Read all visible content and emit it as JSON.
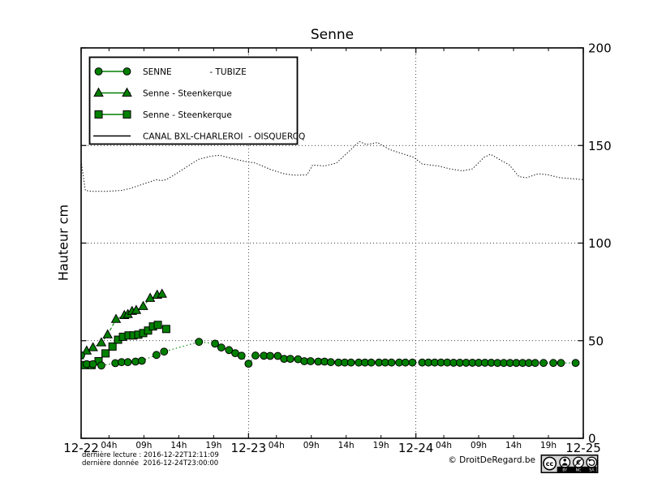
{
  "title": "Senne",
  "ylabel": "Hauteur cm",
  "footer": {
    "last_reading": "dernière lecture : 2016-12-22T12:11:09",
    "last_data": "dernière donnée  2016-12-24T23:00:00",
    "copyright": "© DroitDeRegard.be",
    "cc_badge": {
      "cc": "cc",
      "labels": [
        "BY",
        "NC",
        "SA"
      ]
    }
  },
  "chart_data": {
    "type": "line",
    "title": "Senne",
    "xlabel": "",
    "ylabel": "Hauteur cm",
    "ylim": [
      0,
      200
    ],
    "xlim_hours": [
      0,
      72
    ],
    "grid": {
      "h_values": [
        50,
        100,
        150
      ],
      "v_hours": [
        24,
        48
      ]
    },
    "y_ticks": [
      {
        "v": 0,
        "label": "0"
      },
      {
        "v": 50,
        "label": "50"
      },
      {
        "v": 100,
        "label": "100"
      },
      {
        "v": 150,
        "label": "150"
      },
      {
        "v": 200,
        "label": "200"
      }
    ],
    "x_major_ticks": [
      {
        "h": 0,
        "label": "12-22"
      },
      {
        "h": 24,
        "label": "12-23"
      },
      {
        "h": 48,
        "label": "12-24"
      },
      {
        "h": 72,
        "label": "12-25"
      }
    ],
    "x_minor_ticks": [
      {
        "h": 4,
        "label": "04h"
      },
      {
        "h": 9,
        "label": "09h"
      },
      {
        "h": 14,
        "label": "14h"
      },
      {
        "h": 19,
        "label": "19h"
      },
      {
        "h": 28,
        "label": "04h"
      },
      {
        "h": 33,
        "label": "09h"
      },
      {
        "h": 38,
        "label": "14h"
      },
      {
        "h": 43,
        "label": "19h"
      },
      {
        "h": 52,
        "label": "04h"
      },
      {
        "h": 57,
        "label": "09h"
      },
      {
        "h": 62,
        "label": "14h"
      },
      {
        "h": 67,
        "label": "19h"
      }
    ],
    "legend": [
      {
        "label": "SENNE              - TUBIZE",
        "marker": "circle",
        "color": "#008000"
      },
      {
        "label": "Senne - Steenkerque",
        "marker": "triangle",
        "color": "#008000"
      },
      {
        "label": "Senne - Steenkerque",
        "marker": "square",
        "color": "#008000"
      },
      {
        "label": "CANAL BXL-CHARLEROI  - OISQUERCQ",
        "marker": "none",
        "color": "#000000"
      }
    ],
    "series": [
      {
        "id": "canal-oisquercq",
        "name": "CANAL BXL-CHARLEROI - OISQUERCQ",
        "marker": "none",
        "color": "#000000",
        "line": "dense-dotted",
        "points": [
          [
            0,
            142
          ],
          [
            0.6,
            127
          ],
          [
            1.5,
            126.5
          ],
          [
            2.5,
            126.5
          ],
          [
            3.5,
            126.5
          ],
          [
            4.5,
            126.7
          ],
          [
            5.8,
            127
          ],
          [
            7,
            128
          ],
          [
            8.7,
            130
          ],
          [
            10,
            131.5
          ],
          [
            10.7,
            132.5
          ],
          [
            11.5,
            132
          ],
          [
            12.2,
            132.5
          ],
          [
            13.4,
            135
          ],
          [
            15.1,
            139
          ],
          [
            16.9,
            143
          ],
          [
            18.6,
            144.5
          ],
          [
            19.8,
            145
          ],
          [
            21.5,
            143.5
          ],
          [
            23.3,
            142
          ],
          [
            25,
            141
          ],
          [
            27.3,
            137.5
          ],
          [
            29.1,
            135.5
          ],
          [
            30.5,
            134.8
          ],
          [
            31.4,
            134.8
          ],
          [
            32.4,
            135
          ],
          [
            33.2,
            140
          ],
          [
            34.9,
            139.5
          ],
          [
            36.6,
            141
          ],
          [
            38.4,
            147
          ],
          [
            39.9,
            152
          ],
          [
            40.9,
            150.5
          ],
          [
            41.8,
            151
          ],
          [
            42.5,
            151.5
          ],
          [
            44.2,
            148
          ],
          [
            45.9,
            146
          ],
          [
            47.7,
            144
          ],
          [
            48.9,
            140.5
          ],
          [
            51.2,
            139.5
          ],
          [
            52.9,
            138
          ],
          [
            54.7,
            137
          ],
          [
            56.1,
            138
          ],
          [
            57.8,
            144
          ],
          [
            58.7,
            145.5
          ],
          [
            59.9,
            143
          ],
          [
            61.4,
            140
          ],
          [
            62.8,
            134
          ],
          [
            63.9,
            133.5
          ],
          [
            65.5,
            135.5
          ],
          [
            66.9,
            135
          ],
          [
            68.6,
            133.5
          ],
          [
            70.3,
            133
          ],
          [
            72,
            132.5
          ]
        ]
      },
      {
        "id": "steenkerque-squares",
        "name": "Senne - Steenkerque",
        "marker": "square",
        "color": "#008000",
        "line": "solid",
        "points": [
          [
            0.5,
            37.5
          ],
          [
            1.5,
            37.5
          ],
          [
            2.5,
            39.5
          ],
          [
            3.5,
            43.5
          ],
          [
            4.5,
            47
          ],
          [
            5.3,
            50.5
          ],
          [
            6,
            52
          ],
          [
            6.8,
            52.7
          ],
          [
            7.5,
            52.7
          ],
          [
            8.2,
            53.1
          ],
          [
            8.9,
            53.9
          ],
          [
            9.6,
            55.2
          ],
          [
            10.3,
            57.3
          ],
          [
            11,
            58.1
          ],
          [
            12.2,
            56
          ]
        ]
      },
      {
        "id": "steenkerque-triangles",
        "name": "Senne - Steenkerque",
        "marker": "triangle",
        "color": "#008000",
        "line": "dashed",
        "points": [
          [
            0.8,
            44.8
          ],
          [
            1.7,
            46.5
          ],
          [
            2.9,
            49
          ],
          [
            3.8,
            53.1
          ],
          [
            5,
            61
          ],
          [
            6.2,
            63
          ],
          [
            6.7,
            63.5
          ],
          [
            7.3,
            65.1
          ],
          [
            7.9,
            65.6
          ],
          [
            8.9,
            67.6
          ],
          [
            9.9,
            71.8
          ],
          [
            10.9,
            73.4
          ],
          [
            11.6,
            73.9
          ]
        ]
      },
      {
        "id": "senne-tubize",
        "name": "SENNE - TUBIZE",
        "marker": "circle",
        "color": "#008000",
        "line": "dotted",
        "points": [
          [
            0,
            42.5
          ],
          [
            0.8,
            38
          ],
          [
            1.7,
            38
          ],
          [
            2.9,
            37.3
          ],
          [
            4.9,
            38.5
          ],
          [
            5.8,
            39
          ],
          [
            6.7,
            39
          ],
          [
            7.8,
            39.3
          ],
          [
            8.7,
            39.7
          ],
          [
            10.8,
            42.7
          ],
          [
            11.9,
            44.4
          ],
          [
            16.9,
            49.4
          ],
          [
            19.2,
            48.5
          ],
          [
            20.1,
            46.5
          ],
          [
            21.2,
            45.2
          ],
          [
            22.1,
            43.6
          ],
          [
            23,
            42.3
          ],
          [
            24,
            38.2
          ],
          [
            25,
            42.4
          ],
          [
            26.2,
            42.3
          ],
          [
            27.1,
            42.2
          ],
          [
            28.2,
            42.2
          ],
          [
            29.1,
            40.7
          ],
          [
            30,
            40.7
          ],
          [
            31.1,
            40.5
          ],
          [
            32,
            39.5
          ],
          [
            32.9,
            39.5
          ],
          [
            34,
            39.3
          ],
          [
            34.9,
            39.3
          ],
          [
            35.8,
            39
          ],
          [
            36.9,
            38.8
          ],
          [
            37.8,
            38.8
          ],
          [
            38.7,
            38.8
          ],
          [
            39.8,
            38.8
          ],
          [
            40.7,
            38.8
          ],
          [
            41.6,
            38.8
          ],
          [
            42.7,
            38.8
          ],
          [
            43.6,
            38.8
          ],
          [
            44.5,
            38.8
          ],
          [
            45.6,
            38.8
          ],
          [
            46.5,
            38.8
          ],
          [
            47.5,
            38.8
          ],
          [
            48.9,
            38.8
          ],
          [
            49.8,
            38.8
          ],
          [
            50.7,
            38.8
          ],
          [
            51.6,
            38.8
          ],
          [
            52.5,
            38.8
          ],
          [
            53.4,
            38.7
          ],
          [
            54.3,
            38.7
          ],
          [
            55.2,
            38.7
          ],
          [
            56.1,
            38.7
          ],
          [
            57,
            38.7
          ],
          [
            57.9,
            38.7
          ],
          [
            58.8,
            38.7
          ],
          [
            59.7,
            38.6
          ],
          [
            60.6,
            38.6
          ],
          [
            61.5,
            38.6
          ],
          [
            62.4,
            38.6
          ],
          [
            63.3,
            38.6
          ],
          [
            64.2,
            38.6
          ],
          [
            65.1,
            38.6
          ],
          [
            66.3,
            38.6
          ],
          [
            67.7,
            38.6
          ],
          [
            68.8,
            38.6
          ],
          [
            70.9,
            38.6
          ]
        ]
      }
    ]
  }
}
